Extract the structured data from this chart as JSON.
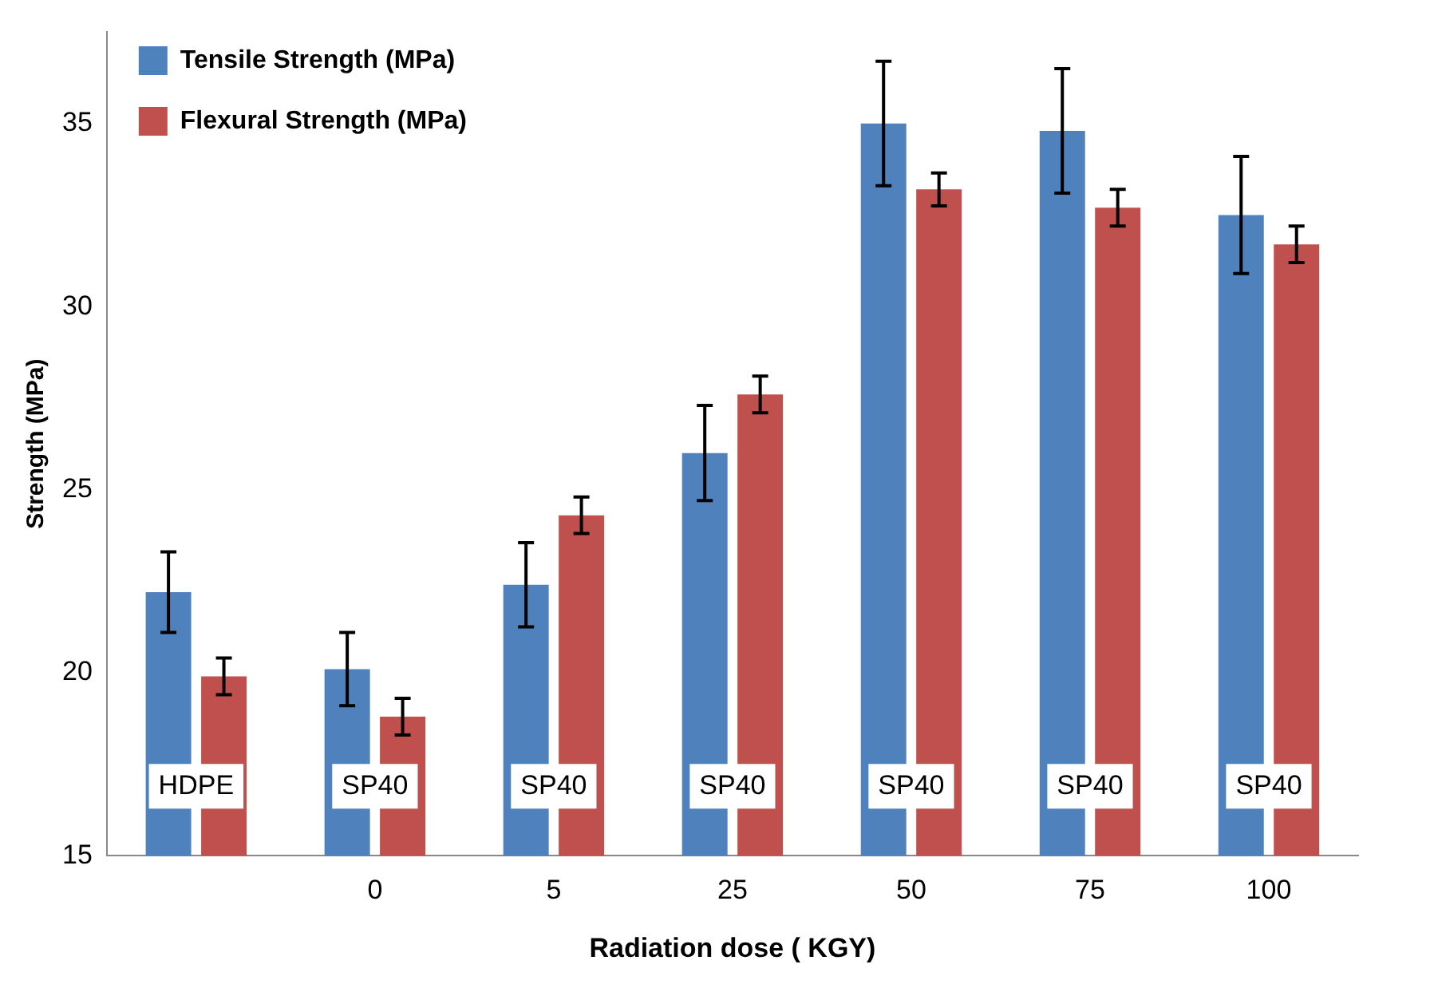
{
  "chart_data": {
    "type": "bar",
    "xlabel": "Radiation dose ( KGY)",
    "ylabel": "Strength (MPa)",
    "categories": [
      null,
      "0",
      "5",
      "25",
      "50",
      "75",
      "100"
    ],
    "series": [
      {
        "name": "Tensile Strength (MPa)",
        "color": "#4f81bd",
        "values": [
          22.2,
          20.1,
          22.4,
          26.0,
          35.0,
          34.8,
          32.5
        ],
        "errors": [
          1.1,
          1.0,
          1.15,
          1.3,
          1.7,
          1.7,
          1.6
        ]
      },
      {
        "name": "Flexural Strength (MPa)",
        "color": "#c0504d",
        "values": [
          19.9,
          18.8,
          24.3,
          27.6,
          33.2,
          32.7,
          31.7
        ],
        "errors": [
          0.5,
          0.5,
          0.5,
          0.5,
          0.45,
          0.5,
          0.5
        ]
      }
    ],
    "annotations": [
      {
        "text": "HDPE",
        "y": 16.9
      },
      {
        "text": "SP40",
        "x": "0",
        "y": 16.9
      },
      {
        "text": "SP40",
        "x": "5",
        "y": 16.9
      },
      {
        "text": "SP40",
        "x": "25",
        "y": 16.9
      },
      {
        "text": "SP40",
        "x": "50",
        "y": 16.9
      },
      {
        "text": "SP40",
        "x": "75",
        "y": 16.9
      },
      {
        "text": "SP40",
        "x": "100",
        "y": 16.9
      }
    ],
    "ylim": [
      15,
      37.5
    ],
    "yticks": [
      15,
      20,
      25,
      30,
      35
    ],
    "grid": false,
    "legend": "top left"
  }
}
